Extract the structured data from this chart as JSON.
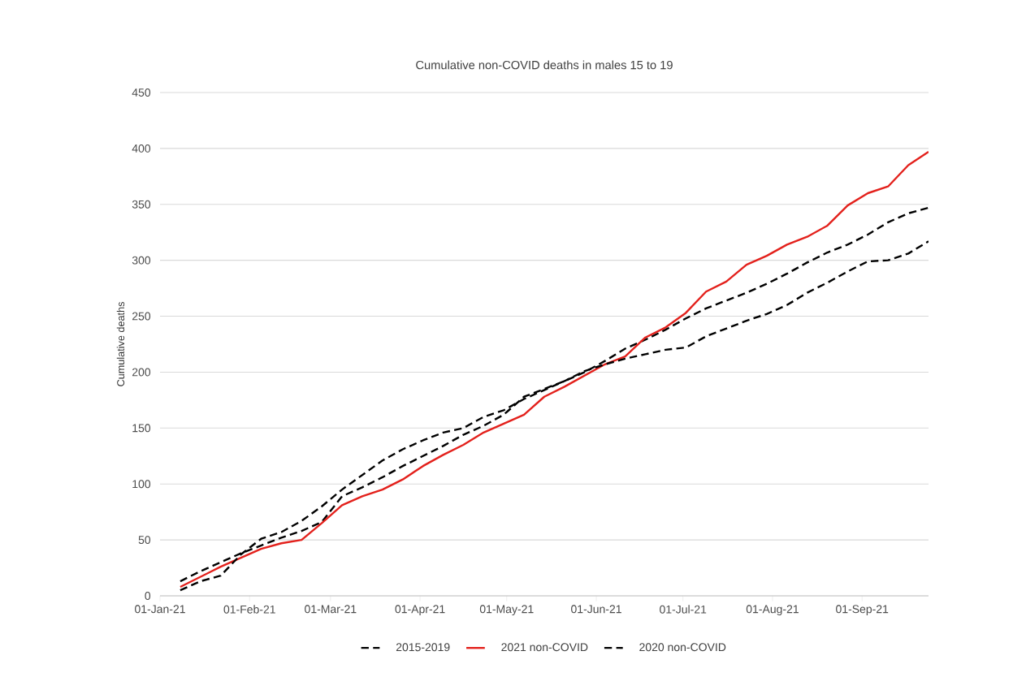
{
  "chart_data": {
    "type": "line",
    "title": "Cumulative non-COVID deaths in males 15 to 19",
    "ylabel": "Cumulative deaths",
    "x": [
      "2021-01-08",
      "2021-01-15",
      "2021-01-22",
      "2021-01-29",
      "2021-02-05",
      "2021-02-12",
      "2021-02-19",
      "2021-02-26",
      "2021-03-05",
      "2021-03-12",
      "2021-03-19",
      "2021-03-26",
      "2021-04-02",
      "2021-04-09",
      "2021-04-16",
      "2021-04-23",
      "2021-04-30",
      "2021-05-07",
      "2021-05-14",
      "2021-05-21",
      "2021-05-28",
      "2021-06-04",
      "2021-06-11",
      "2021-06-18",
      "2021-06-25",
      "2021-07-02",
      "2021-07-09",
      "2021-07-16",
      "2021-07-23",
      "2021-07-30",
      "2021-08-06",
      "2021-08-13",
      "2021-08-20",
      "2021-08-27",
      "2021-09-03",
      "2021-09-10",
      "2021-09-17",
      "2021-09-24"
    ],
    "series": [
      {
        "name": "2015-2019",
        "color": "#000000",
        "line_style": "dashed",
        "values": [
          13,
          22,
          30,
          38,
          45,
          52,
          58,
          66,
          89,
          97,
          106,
          116,
          125,
          134,
          144,
          152,
          162,
          178,
          185,
          192,
          200,
          210,
          221,
          229,
          238,
          248,
          257,
          264,
          271,
          279,
          288,
          298,
          307,
          314,
          323,
          334,
          342,
          347
        ]
      },
      {
        "name": "2021 non-COVID",
        "color": "#e3211c",
        "line_style": "solid",
        "values": [
          8,
          17,
          26,
          34,
          42,
          47,
          50,
          65,
          81,
          89,
          95,
          104,
          116,
          126,
          135,
          146,
          154,
          162,
          178,
          187,
          197,
          207,
          214,
          231,
          240,
          253,
          272,
          281,
          296,
          304,
          314,
          321,
          331,
          349,
          360,
          366,
          385,
          397
        ]
      },
      {
        "name": "2020 non-COVID",
        "color": "#000000",
        "line_style": "dashed",
        "values": [
          5,
          13,
          18,
          37,
          51,
          57,
          67,
          80,
          95,
          108,
          121,
          131,
          139,
          146,
          150,
          160,
          166,
          176,
          184,
          192,
          201,
          207,
          212,
          216,
          220,
          222,
          232,
          239,
          246,
          252,
          260,
          271,
          280,
          290,
          299,
          300,
          306,
          317
        ]
      }
    ],
    "xlim": [
      "2021-01-01",
      "2021-09-24"
    ],
    "xticks": [
      {
        "value": "2021-01-01",
        "label": "01-Jan-21"
      },
      {
        "value": "2021-02-01",
        "label": "01-Feb-21"
      },
      {
        "value": "2021-03-01",
        "label": "01-Mar-21"
      },
      {
        "value": "2021-04-01",
        "label": "01-Apr-21"
      },
      {
        "value": "2021-05-01",
        "label": "01-May-21"
      },
      {
        "value": "2021-06-01",
        "label": "01-Jun-21"
      },
      {
        "value": "2021-07-01",
        "label": "01-Jul-21"
      },
      {
        "value": "2021-08-01",
        "label": "01-Aug-21"
      },
      {
        "value": "2021-09-01",
        "label": "01-Sep-21"
      }
    ],
    "ylim": [
      0,
      450
    ],
    "yticks": [
      0,
      50,
      100,
      150,
      200,
      250,
      300,
      350,
      400,
      450
    ],
    "grid": "y",
    "legend": "bottom",
    "marker": "none"
  }
}
